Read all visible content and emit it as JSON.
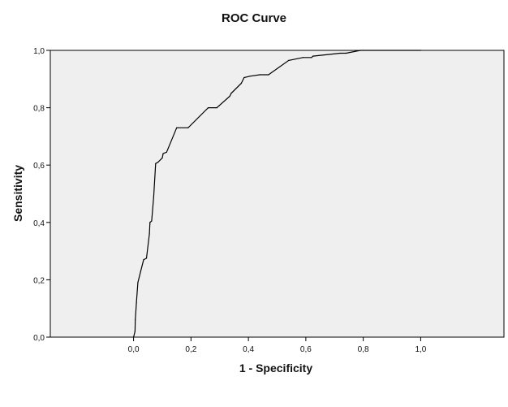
{
  "chart_data": {
    "type": "line",
    "title": "ROC Curve",
    "xlabel": "1 - Specificity",
    "ylabel": "Sensitivity",
    "xlim": [
      -0.29,
      1.29
    ],
    "ylim": [
      0.0,
      1.0
    ],
    "x_ticks": [
      "0,0",
      "0,2",
      "0,4",
      "0,6",
      "0,8",
      "1,0"
    ],
    "y_ticks": [
      "0,0",
      "0,2",
      "0,4",
      "0,6",
      "0,8",
      "1,0"
    ],
    "grid": false,
    "legend": "none",
    "colors": {
      "plot_background": "#efefef",
      "line": "#000000",
      "frame": "#000000"
    },
    "series": [
      {
        "points": [
          [
            0.0,
            0.0
          ],
          [
            0.005,
            0.02
          ],
          [
            0.006,
            0.06
          ],
          [
            0.01,
            0.12
          ],
          [
            0.015,
            0.19
          ],
          [
            0.025,
            0.23
          ],
          [
            0.035,
            0.27
          ],
          [
            0.045,
            0.275
          ],
          [
            0.055,
            0.36
          ],
          [
            0.057,
            0.4
          ],
          [
            0.063,
            0.405
          ],
          [
            0.07,
            0.49
          ],
          [
            0.077,
            0.605
          ],
          [
            0.085,
            0.61
          ],
          [
            0.1,
            0.625
          ],
          [
            0.103,
            0.64
          ],
          [
            0.115,
            0.645
          ],
          [
            0.15,
            0.73
          ],
          [
            0.155,
            0.73
          ],
          [
            0.19,
            0.73
          ],
          [
            0.26,
            0.8
          ],
          [
            0.29,
            0.8
          ],
          [
            0.335,
            0.84
          ],
          [
            0.34,
            0.85
          ],
          [
            0.375,
            0.885
          ],
          [
            0.385,
            0.905
          ],
          [
            0.405,
            0.91
          ],
          [
            0.44,
            0.915
          ],
          [
            0.47,
            0.915
          ],
          [
            0.54,
            0.965
          ],
          [
            0.59,
            0.975
          ],
          [
            0.62,
            0.975
          ],
          [
            0.625,
            0.98
          ],
          [
            0.72,
            0.99
          ],
          [
            0.74,
            0.99
          ],
          [
            0.79,
            1.0
          ],
          [
            1.0,
            1.0
          ]
        ]
      }
    ]
  }
}
